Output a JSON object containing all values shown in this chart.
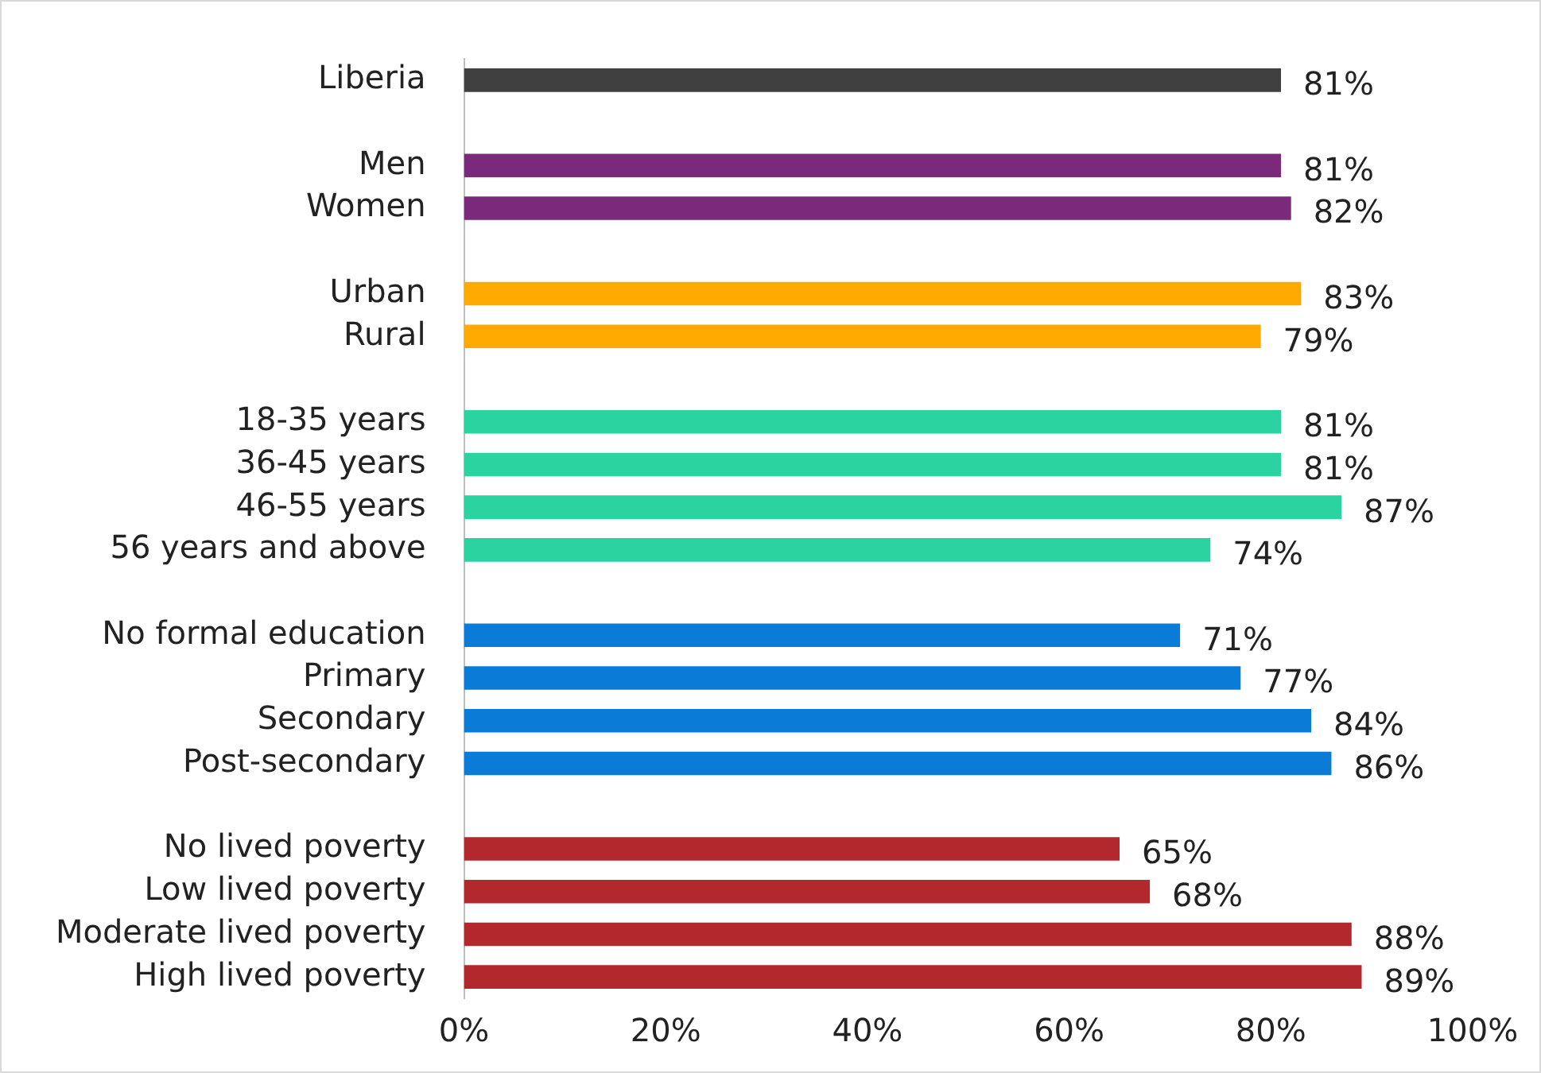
{
  "chart_data": {
    "type": "bar",
    "orientation": "horizontal",
    "categories": [
      "Liberia",
      null,
      "Men",
      "Women",
      null,
      "Urban",
      "Rural",
      null,
      "18-35 years",
      "36-45 years",
      "46-55 years",
      "56 years and above",
      null,
      "No formal education",
      "Primary",
      "Secondary",
      "Post-secondary",
      null,
      "No lived poverty",
      "Low lived poverty",
      "Moderate lived poverty",
      "High lived poverty"
    ],
    "values": [
      81,
      null,
      81,
      82,
      null,
      83,
      79,
      null,
      81,
      81,
      87,
      74,
      null,
      71,
      77,
      84,
      86,
      null,
      65,
      68,
      88,
      89
    ],
    "value_labels": [
      "81%",
      null,
      "81%",
      "82%",
      null,
      "83%",
      "79%",
      null,
      "81%",
      "81%",
      "87%",
      "74%",
      null,
      "71%",
      "77%",
      "84%",
      "86%",
      null,
      "65%",
      "68%",
      "88%",
      "89%"
    ],
    "colors": [
      "#404040",
      null,
      "#7b2a7b",
      "#7b2a7b",
      null,
      "#ffaa00",
      "#ffaa00",
      null,
      "#2bd3a0",
      "#2bd3a0",
      "#2bd3a0",
      "#2bd3a0",
      null,
      "#0a7bd6",
      "#0a7bd6",
      "#0a7bd6",
      "#0a7bd6",
      null,
      "#b3282d",
      "#b3282d",
      "#b3282d",
      "#b3282d"
    ],
    "xlim": [
      0,
      100
    ],
    "xticks": [
      {
        "value": 0,
        "label": "0%"
      },
      {
        "value": 20,
        "label": "20%"
      },
      {
        "value": 40,
        "label": "40%"
      },
      {
        "value": 60,
        "label": "60%"
      },
      {
        "value": 80,
        "label": "80%"
      },
      {
        "value": 100,
        "label": "100%"
      }
    ],
    "grid": false,
    "legend": false
  }
}
